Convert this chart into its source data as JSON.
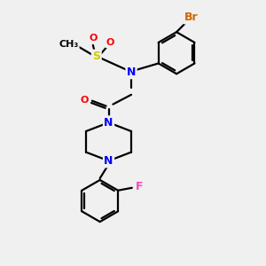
{
  "bg_color": "#f0f0f0",
  "bond_color": "#000000",
  "atom_colors": {
    "N": "#0000ff",
    "O": "#ff0000",
    "S": "#cccc00",
    "Br": "#cc6600",
    "F": "#ff44bb",
    "C": "#000000"
  },
  "figsize": [
    3.0,
    3.0
  ],
  "dpi": 100
}
